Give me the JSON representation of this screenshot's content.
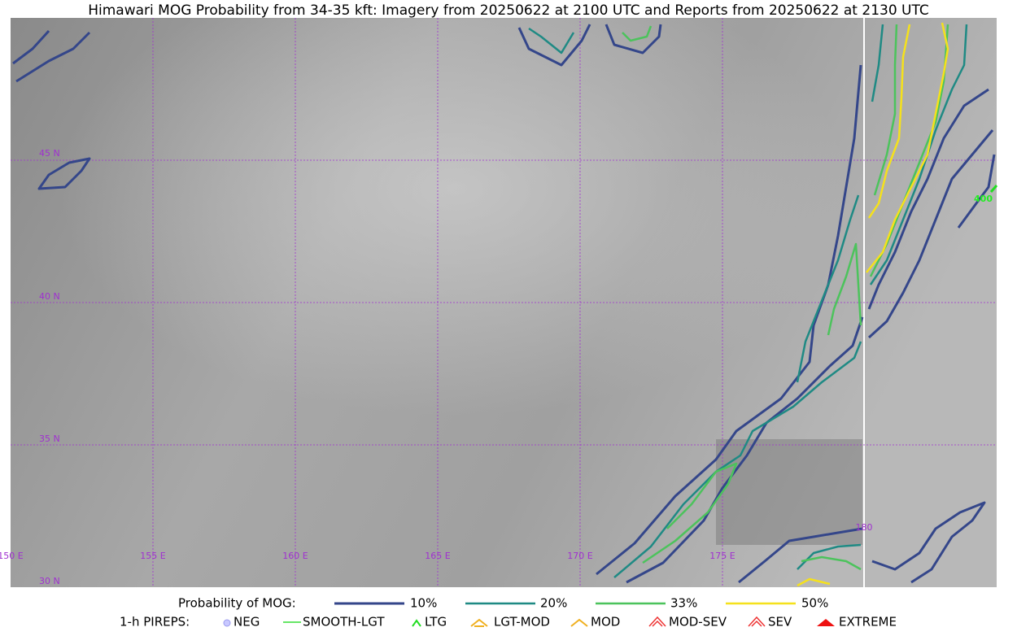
{
  "title": "Himawari MOG Probability from 34-35 kft: Imagery from 20250622 at 2100 UTC and Reports from 20250622 at 2130 UTC",
  "map": {
    "lat_labels": [
      "45 N",
      "40 N",
      "35 N",
      "30 N"
    ],
    "lon_labels": [
      "150 E",
      "155 E",
      "160 E",
      "165 E",
      "170 E",
      "175 E",
      "180"
    ],
    "report_label": "400"
  },
  "legend": {
    "probability": {
      "title": "Probability of MOG:",
      "items": [
        "10%",
        "20%",
        "33%",
        "50%"
      ]
    },
    "pireps": {
      "title": "1-h PIREPS:",
      "items": [
        "NEG",
        "SMOOTH-LGT",
        "LTG",
        "LGT-MOD",
        "MOD",
        "MOD-SEV",
        "SEV",
        "EXTREME"
      ]
    }
  }
}
